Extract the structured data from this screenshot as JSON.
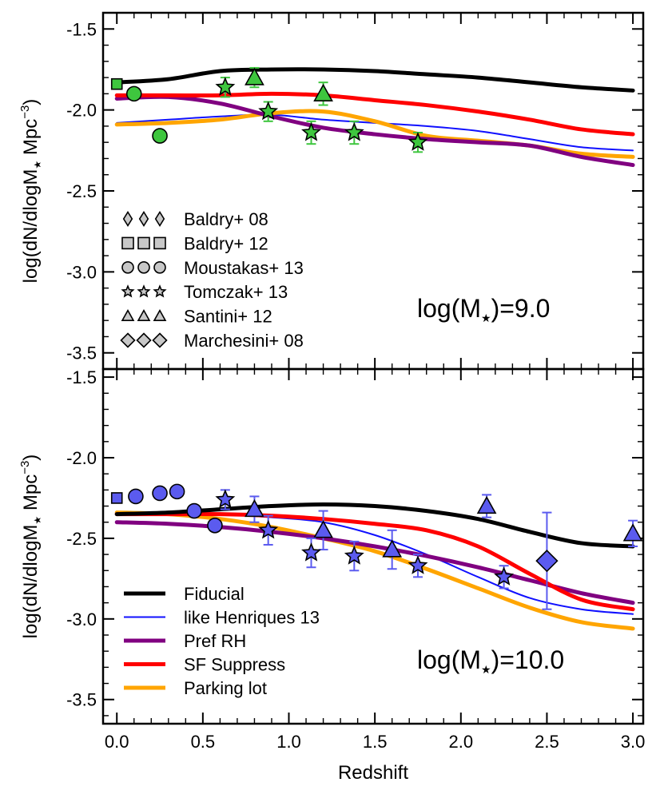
{
  "chart_data": {
    "type": "line",
    "xlabel": "Redshift",
    "xlim": [
      -0.08,
      3.06
    ],
    "x_ticks": [
      "0.0",
      "0.5",
      "1.0",
      "1.5",
      "2.0",
      "2.5",
      "3.0"
    ],
    "x_tick_values": [
      0.0,
      0.5,
      1.0,
      1.5,
      2.0,
      2.5,
      3.0
    ],
    "ylabel_main": "log(dN/dlogM",
    "ylabel_sub": "★",
    "ylabel_tail": " Mpc",
    "ylabel_sup": "−3",
    "ylabel_close": ")",
    "colors": {
      "Fiducial": "#000000",
      "like Henriques 13": "#1010ff",
      "Pref RH": "#800080",
      "SF Suppress": "#ff0000",
      "Parking lot": "#ffa500",
      "panel1_points": "#3ec63e",
      "panel2_points": "#5b5bef"
    },
    "line_legend": [
      {
        "label": "Fiducial",
        "color": "#000000",
        "width": 5
      },
      {
        "label": "like Henriques 13",
        "color": "#1010ff",
        "width": 2
      },
      {
        "label": "Pref RH",
        "color": "#800080",
        "width": 5
      },
      {
        "label": "SF Suppress",
        "color": "#ff0000",
        "width": 5
      },
      {
        "label": "Parking lot",
        "color": "#ffa500",
        "width": 5
      }
    ],
    "marker_legend": [
      {
        "label": "Baldry+ 08",
        "marker": "thin-diamond"
      },
      {
        "label": "Baldry+ 12",
        "marker": "square"
      },
      {
        "label": "Moustakas+ 13",
        "marker": "circle"
      },
      {
        "label": "Tomczak+ 13",
        "marker": "star"
      },
      {
        "label": "Santini+ 12",
        "marker": "triangle"
      },
      {
        "label": "Marchesini+ 08",
        "marker": "diamond"
      }
    ],
    "panels": [
      {
        "label": "log(M",
        "label_sub": "★",
        "label_tail": ")=9.0",
        "ylim": [
          -3.6,
          -1.4
        ],
        "y_ticks": [
          "-1.5",
          "-2.0",
          "-2.5",
          "-3.0",
          "-3.5"
        ],
        "y_tick_values": [
          -1.5,
          -2.0,
          -2.5,
          -3.0,
          -3.5
        ],
        "point_color": "#3ec63e",
        "err_color": "#3ec63e",
        "series": [
          {
            "name": "Fiducial",
            "color": "#000000",
            "width": 5,
            "x": [
              0.0,
              0.3,
              0.6,
              0.9,
              1.2,
              1.5,
              1.8,
              2.1,
              2.4,
              2.7,
              3.0
            ],
            "y": [
              -1.83,
              -1.81,
              -1.76,
              -1.75,
              -1.75,
              -1.76,
              -1.78,
              -1.8,
              -1.83,
              -1.86,
              -1.88
            ]
          },
          {
            "name": "like Henriques 13",
            "color": "#1010ff",
            "width": 2,
            "x": [
              0.0,
              0.3,
              0.6,
              0.9,
              1.2,
              1.5,
              1.8,
              2.1,
              2.4,
              2.7,
              3.0
            ],
            "y": [
              -2.08,
              -2.06,
              -2.04,
              -2.03,
              -2.06,
              -2.08,
              -2.1,
              -2.13,
              -2.18,
              -2.23,
              -2.25
            ]
          },
          {
            "name": "Pref RH",
            "color": "#800080",
            "width": 5,
            "x": [
              0.0,
              0.3,
              0.6,
              0.9,
              1.2,
              1.5,
              1.8,
              2.1,
              2.4,
              2.7,
              3.0
            ],
            "y": [
              -1.93,
              -1.92,
              -1.96,
              -2.04,
              -2.11,
              -2.15,
              -2.18,
              -2.2,
              -2.22,
              -2.29,
              -2.34
            ]
          },
          {
            "name": "SF Suppress",
            "color": "#ff0000",
            "width": 5,
            "x": [
              0.0,
              0.3,
              0.6,
              0.9,
              1.2,
              1.5,
              1.8,
              2.1,
              2.4,
              2.7,
              3.0
            ],
            "y": [
              -1.91,
              -1.91,
              -1.91,
              -1.9,
              -1.91,
              -1.94,
              -1.97,
              -2.01,
              -2.06,
              -2.12,
              -2.15
            ]
          },
          {
            "name": "Parking lot",
            "color": "#ffa500",
            "width": 5,
            "x": [
              0.0,
              0.3,
              0.6,
              0.9,
              1.2,
              1.5,
              1.8,
              2.1,
              2.4,
              2.7,
              3.0
            ],
            "y": [
              -2.09,
              -2.08,
              -2.06,
              -2.02,
              -2.01,
              -2.07,
              -2.16,
              -2.19,
              -2.22,
              -2.27,
              -2.29
            ]
          }
        ],
        "points": [
          {
            "marker": "square",
            "x": 0.0,
            "y": -1.84,
            "size": 13
          },
          {
            "marker": "circle",
            "x": 0.1,
            "y": -1.9,
            "size": 18
          },
          {
            "marker": "circle",
            "x": 0.25,
            "y": -2.16,
            "size": 18
          },
          {
            "marker": "star",
            "x": 0.63,
            "y": -1.86,
            "err": 0.06,
            "size": 22
          },
          {
            "marker": "triangle",
            "x": 0.8,
            "y": -1.8,
            "err": 0.06,
            "size": 22
          },
          {
            "marker": "star",
            "x": 0.88,
            "y": -2.01,
            "err": 0.06,
            "size": 22
          },
          {
            "marker": "triangle",
            "x": 1.2,
            "y": -1.9,
            "err": 0.07,
            "size": 22
          },
          {
            "marker": "star",
            "x": 1.13,
            "y": -2.14,
            "err": 0.07,
            "size": 22
          },
          {
            "marker": "star",
            "x": 1.38,
            "y": -2.14,
            "err": 0.07,
            "size": 22
          },
          {
            "marker": "star",
            "x": 1.75,
            "y": -2.2,
            "err": 0.06,
            "size": 22
          }
        ]
      },
      {
        "label": "log(M",
        "label_sub": "★",
        "label_tail": ")=10.0",
        "ylim": [
          -3.65,
          -1.45
        ],
        "y_ticks": [
          "-1.5",
          "-2.0",
          "-2.5",
          "-3.0",
          "-3.5"
        ],
        "y_tick_values": [
          -1.5,
          -2.0,
          -2.5,
          -3.0,
          -3.5
        ],
        "point_color": "#5b5bef",
        "err_color": "#5b5bef",
        "series": [
          {
            "name": "Fiducial",
            "color": "#000000",
            "width": 5,
            "x": [
              0.0,
              0.3,
              0.6,
              0.9,
              1.2,
              1.5,
              1.8,
              2.1,
              2.4,
              2.7,
              3.0
            ],
            "y": [
              -2.35,
              -2.34,
              -2.32,
              -2.3,
              -2.29,
              -2.3,
              -2.33,
              -2.38,
              -2.46,
              -2.53,
              -2.55
            ]
          },
          {
            "name": "like Henriques 13",
            "color": "#1010ff",
            "width": 2,
            "x": [
              0.0,
              0.3,
              0.6,
              0.9,
              1.2,
              1.5,
              1.8,
              2.1,
              2.4,
              2.7,
              3.0
            ],
            "y": [
              -2.34,
              -2.34,
              -2.35,
              -2.37,
              -2.4,
              -2.48,
              -2.6,
              -2.74,
              -2.87,
              -2.94,
              -2.97
            ]
          },
          {
            "name": "Pref RH",
            "color": "#800080",
            "width": 5,
            "x": [
              0.0,
              0.3,
              0.6,
              0.9,
              1.2,
              1.5,
              1.8,
              2.1,
              2.4,
              2.7,
              3.0
            ],
            "y": [
              -2.4,
              -2.41,
              -2.43,
              -2.46,
              -2.5,
              -2.55,
              -2.61,
              -2.68,
              -2.76,
              -2.84,
              -2.9
            ]
          },
          {
            "name": "SF Suppress",
            "color": "#ff0000",
            "width": 5,
            "x": [
              0.0,
              0.3,
              0.6,
              0.9,
              1.2,
              1.5,
              1.8,
              2.1,
              2.4,
              2.7,
              3.0
            ],
            "y": [
              -2.35,
              -2.35,
              -2.35,
              -2.36,
              -2.38,
              -2.41,
              -2.45,
              -2.55,
              -2.72,
              -2.88,
              -2.94
            ]
          },
          {
            "name": "Parking lot",
            "color": "#ffa500",
            "width": 5,
            "x": [
              0.0,
              0.3,
              0.6,
              0.9,
              1.2,
              1.5,
              1.8,
              2.1,
              2.4,
              2.7,
              3.0
            ],
            "y": [
              -2.34,
              -2.35,
              -2.38,
              -2.43,
              -2.5,
              -2.58,
              -2.69,
              -2.81,
              -2.93,
              -3.02,
              -3.06
            ]
          }
        ],
        "points": [
          {
            "marker": "square",
            "x": 0.0,
            "y": -2.25,
            "size": 13
          },
          {
            "marker": "circle",
            "x": 0.11,
            "y": -2.24,
            "size": 18
          },
          {
            "marker": "circle",
            "x": 0.25,
            "y": -2.22,
            "size": 18
          },
          {
            "marker": "circle",
            "x": 0.35,
            "y": -2.21,
            "size": 18
          },
          {
            "marker": "circle",
            "x": 0.45,
            "y": -2.33,
            "size": 18
          },
          {
            "marker": "circle",
            "x": 0.57,
            "y": -2.42,
            "size": 18
          },
          {
            "marker": "star",
            "x": 0.63,
            "y": -2.26,
            "err": 0.06,
            "size": 22
          },
          {
            "marker": "triangle",
            "x": 0.8,
            "y": -2.32,
            "err": 0.08,
            "size": 22
          },
          {
            "marker": "star",
            "x": 0.88,
            "y": -2.45,
            "err": 0.09,
            "size": 22
          },
          {
            "marker": "triangle",
            "x": 1.2,
            "y": -2.45,
            "err": 0.12,
            "size": 22
          },
          {
            "marker": "star",
            "x": 1.13,
            "y": -2.59,
            "err": 0.09,
            "size": 22
          },
          {
            "marker": "star",
            "x": 1.38,
            "y": -2.61,
            "err": 0.09,
            "size": 22
          },
          {
            "marker": "triangle",
            "x": 1.6,
            "y": -2.57,
            "err": 0.12,
            "size": 22
          },
          {
            "marker": "star",
            "x": 1.75,
            "y": -2.67,
            "err": 0.07,
            "size": 22
          },
          {
            "marker": "triangle",
            "x": 2.15,
            "y": -2.3,
            "err": 0.07,
            "size": 22
          },
          {
            "marker": "star",
            "x": 2.25,
            "y": -2.74,
            "err": 0.07,
            "size": 22
          },
          {
            "marker": "diamond",
            "x": 2.5,
            "y": -2.64,
            "err": 0.3,
            "size": 26
          },
          {
            "marker": "triangle",
            "x": 3.0,
            "y": -2.47,
            "err": 0.08,
            "size": 22
          }
        ]
      }
    ]
  }
}
